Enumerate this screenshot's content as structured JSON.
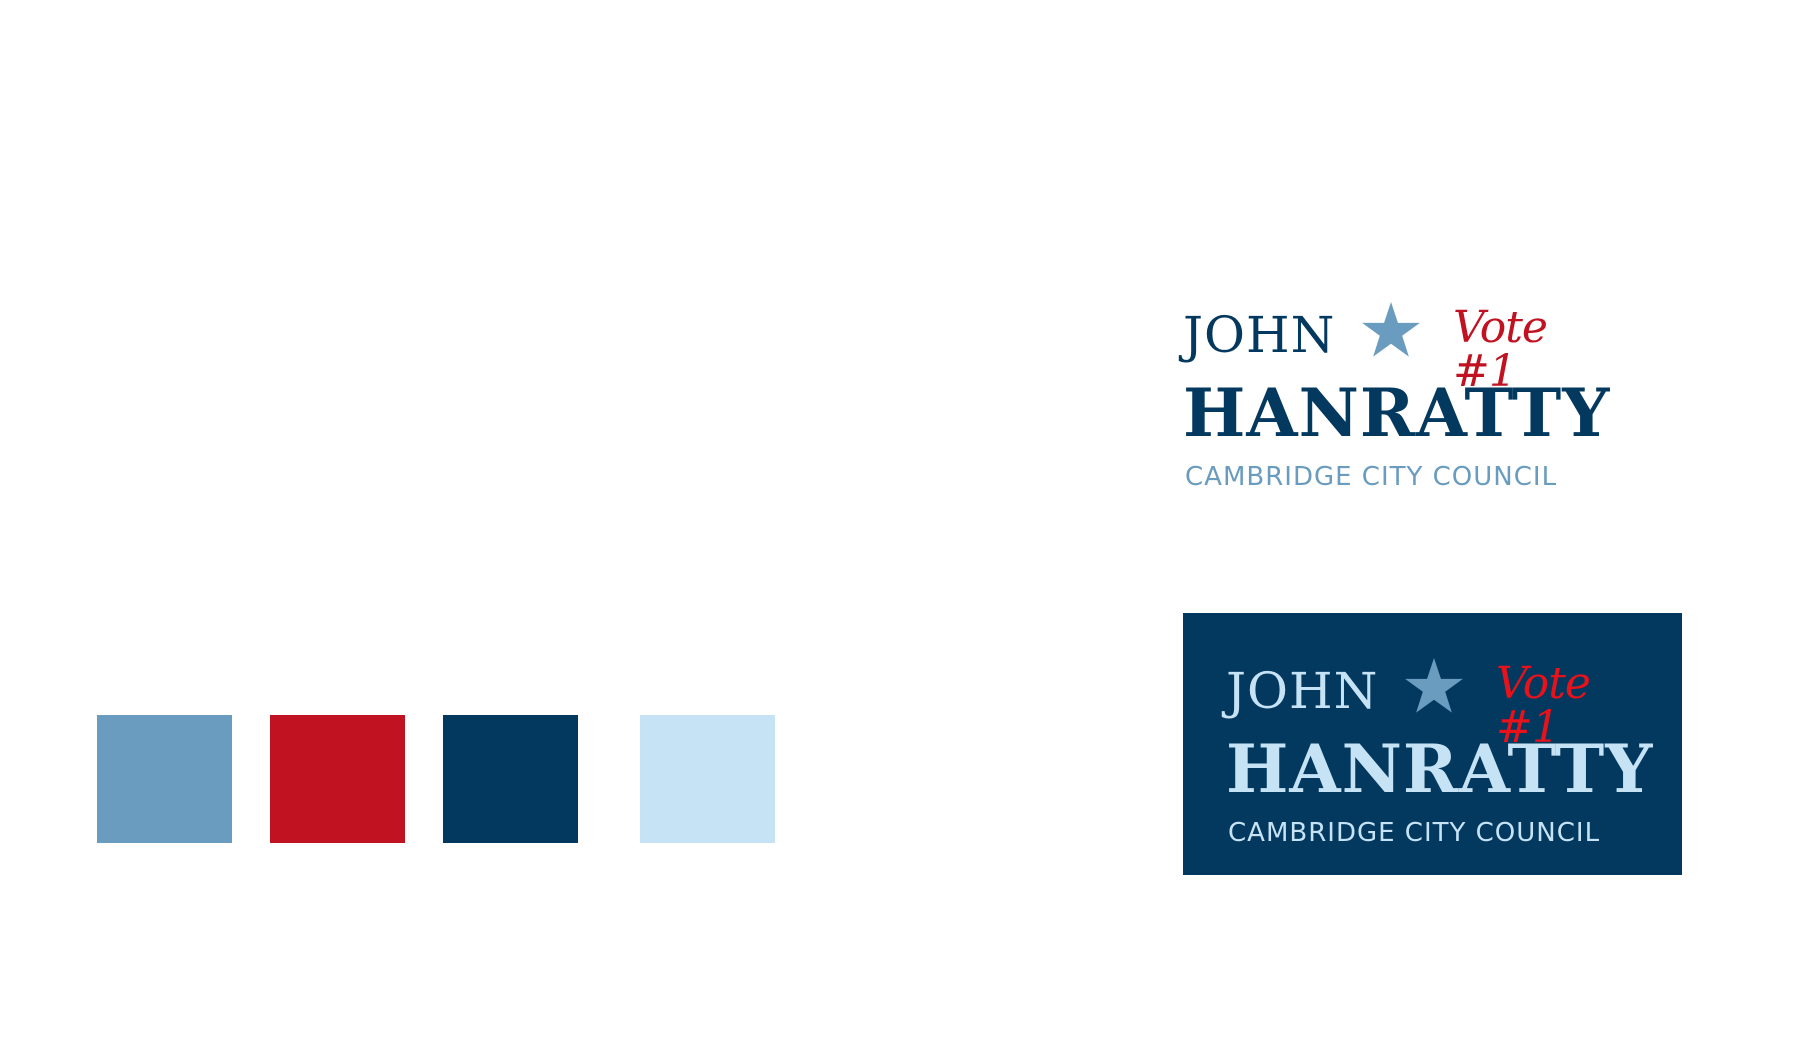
{
  "palette": {
    "steel_blue": "#6a9cbf",
    "red": "#c01221",
    "navy": "#03385f",
    "light_blue": "#c5e3f4",
    "bright_red": "#e8121b"
  },
  "logo_light": {
    "first_name": "JOHN",
    "last_name": "HANRATTY",
    "vote_text": "Vote #1",
    "subtitle": "CAMBRIDGE CITY COUNCIL",
    "icon": "star-icon"
  },
  "logo_dark": {
    "first_name": "JOHN",
    "last_name": "HANRATTY",
    "vote_text": "Vote #1",
    "subtitle": "CAMBRIDGE CITY COUNCIL",
    "icon": "star-icon"
  }
}
